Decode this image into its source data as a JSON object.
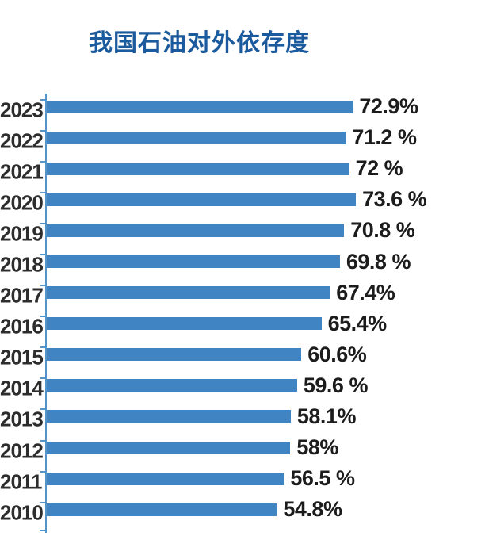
{
  "title": "我国石油对外依存度",
  "chart_data": {
    "type": "bar",
    "orientation": "horizontal",
    "title": "我国石油对外依存度",
    "categories": [
      "2023",
      "2022",
      "2021",
      "2020",
      "2019",
      "2018",
      "2017",
      "2016",
      "2015",
      "2014",
      "2013",
      "2012",
      "2011",
      "2010"
    ],
    "values": [
      72.9,
      71.2,
      72,
      73.6,
      70.8,
      69.8,
      67.4,
      65.4,
      60.6,
      59.6,
      58.1,
      58,
      56.5,
      54.8
    ],
    "value_labels": [
      "72.9%",
      "71.2 %",
      "72 %",
      "73.6 %",
      "70.8 %",
      "69.8 %",
      "67.4%",
      "65.4%",
      "60.6%",
      "59.6 %",
      "58.1%",
      "58%",
      "56.5 %",
      "54.8%"
    ],
    "xlabel": "",
    "ylabel": "",
    "xlim": [
      0,
      73.6
    ],
    "grid": false,
    "legend": false,
    "bar_color": "#4184c4",
    "axis_color": "#5494c9",
    "title_color": "#1b5a9c",
    "year_label_color": "#2d2d2d",
    "value_label_color": "#1c1c1c"
  }
}
